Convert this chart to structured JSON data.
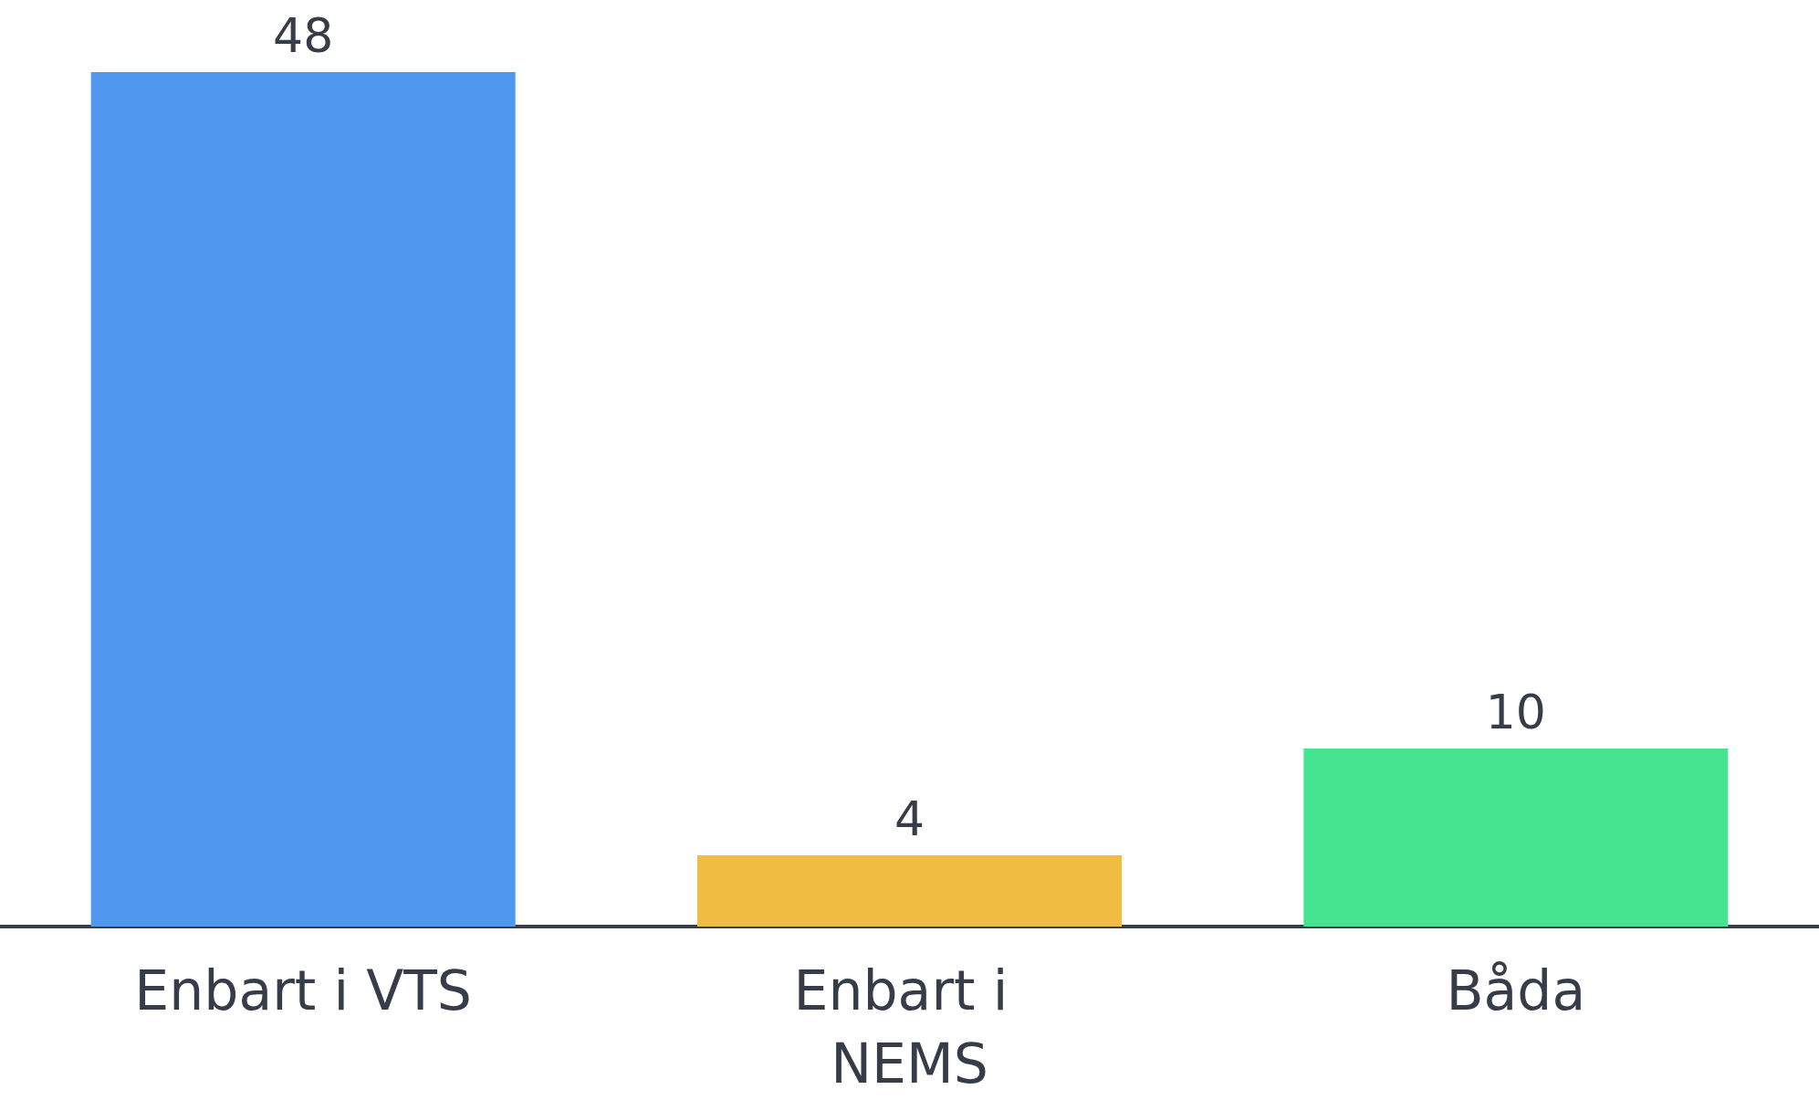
{
  "chart_data": {
    "type": "bar",
    "categories": [
      "Enbart i VTS",
      "Enbart i NEMS",
      "Båda"
    ],
    "values": [
      48,
      4,
      10
    ],
    "colors": [
      "#4f98ee",
      "#f0bc42",
      "#46e490"
    ],
    "data_labels": true
  }
}
